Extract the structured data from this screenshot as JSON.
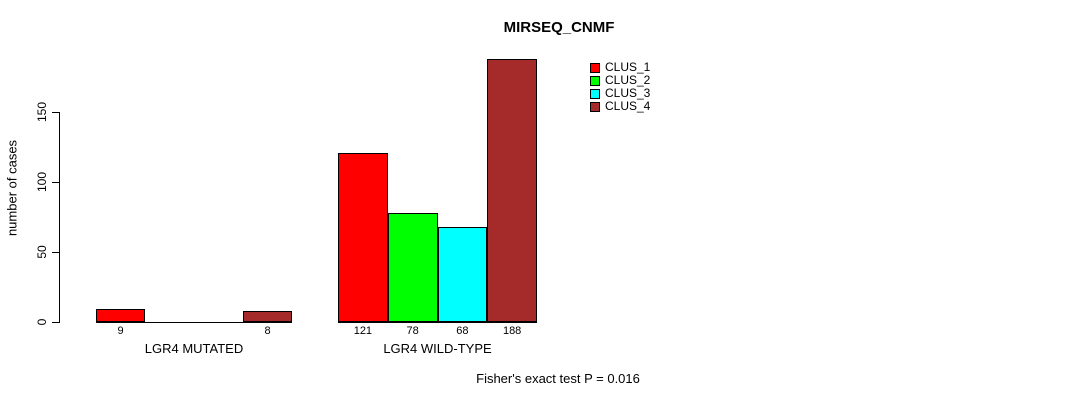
{
  "chart_data": {
    "type": "bar",
    "title": "MIRSEQ_CNMF",
    "ylabel": "number of cases",
    "xlabel": "",
    "categories": [
      "LGR4 MUTATED",
      "LGR4 WILD-TYPE"
    ],
    "series": [
      {
        "name": "CLUS_1",
        "color": "#ff0000",
        "values": [
          9,
          121
        ]
      },
      {
        "name": "CLUS_2",
        "color": "#00ff00",
        "values": [
          0,
          78
        ]
      },
      {
        "name": "CLUS_3",
        "color": "#00ffff",
        "values": [
          0,
          68
        ]
      },
      {
        "name": "CLUS_4",
        "color": "#a52a2a",
        "values": [
          8,
          188
        ]
      }
    ],
    "yticks": [
      0,
      50,
      100,
      150
    ],
    "ylim": [
      0,
      190
    ],
    "grid": false,
    "bar_value_labels_shown": true,
    "zero_value_labels_hidden": true,
    "legend": {
      "position": "top, right of center",
      "entries": [
        "CLUS_1",
        "CLUS_2",
        "CLUS_3",
        "CLUS_4"
      ]
    },
    "annotation": "Fisher's exact test P = 0.016"
  }
}
